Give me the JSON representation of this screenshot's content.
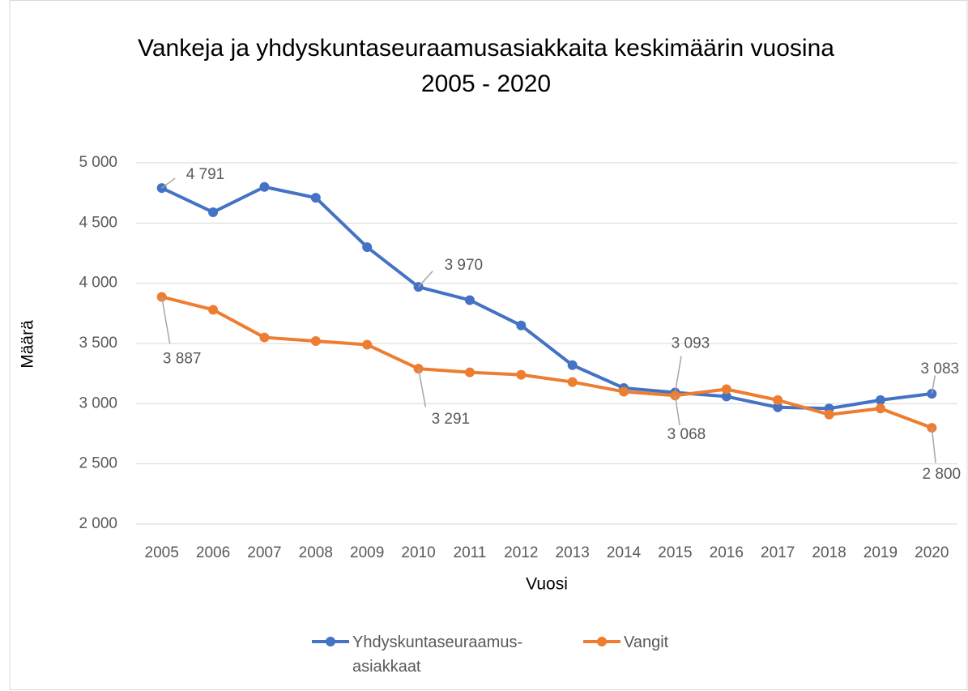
{
  "chart_data": {
    "type": "line",
    "title": "Vankeja ja yhdyskuntaseuraamusasiakkaita keskimäärin vuosina 2005 - 2020",
    "x_label": "Vuosi",
    "y_label": "Määrä",
    "categories": [
      "2005",
      "2006",
      "2007",
      "2008",
      "2009",
      "2010",
      "2011",
      "2012",
      "2013",
      "2014",
      "2015",
      "2016",
      "2017",
      "2018",
      "2019",
      "2020"
    ],
    "series": [
      {
        "name": "Yhdyskuntaseuraamus-asiakkaat",
        "color": "#4472c4",
        "values": [
          4791,
          4590,
          4800,
          4710,
          4300,
          3970,
          3860,
          3650,
          3320,
          3130,
          3093,
          3060,
          2970,
          2960,
          3030,
          3083
        ],
        "value_labels": [
          "4 791",
          null,
          null,
          null,
          null,
          "3 970",
          null,
          null,
          null,
          null,
          "3 093",
          null,
          null,
          null,
          null,
          "3 083"
        ]
      },
      {
        "name": "Vangit",
        "color": "#ed7d31",
        "values": [
          3887,
          3780,
          3550,
          3520,
          3490,
          3291,
          3260,
          3240,
          3180,
          3100,
          3068,
          3120,
          3030,
          2910,
          2960,
          2800
        ],
        "value_labels": [
          "3 887",
          null,
          null,
          null,
          null,
          "3 291",
          null,
          null,
          null,
          null,
          "3 068",
          null,
          null,
          null,
          null,
          "2 800"
        ]
      }
    ],
    "ylim": [
      2000,
      5000
    ],
    "yticks": [
      {
        "value": 2000,
        "label": "2 000"
      },
      {
        "value": 2500,
        "label": "2 500"
      },
      {
        "value": 3000,
        "label": "3 000"
      },
      {
        "value": 3500,
        "label": "3 500"
      },
      {
        "value": 4000,
        "label": "4 000"
      },
      {
        "value": 4500,
        "label": "4 500"
      },
      {
        "value": 5000,
        "label": "5 000"
      }
    ],
    "grid": true,
    "legend": "bottom"
  }
}
